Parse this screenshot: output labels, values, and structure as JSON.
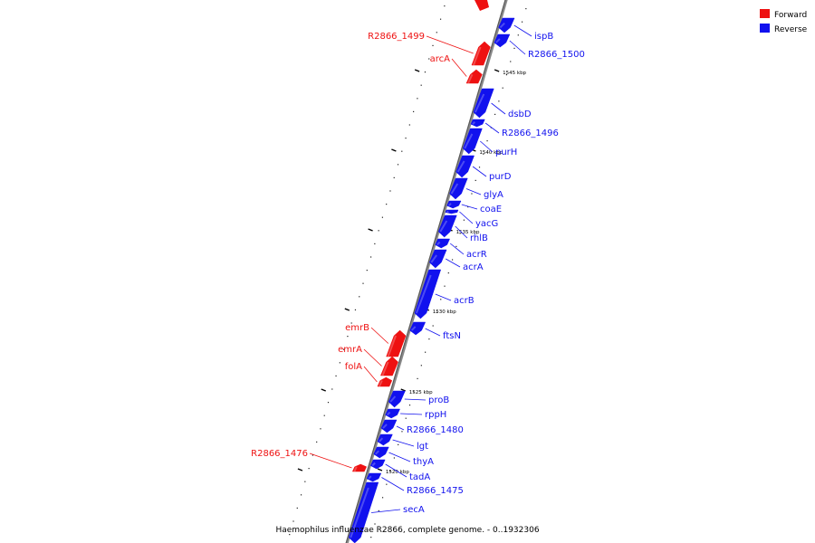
{
  "colors": {
    "forward": "#ee1111",
    "reverse": "#1111ee",
    "backbone": "#888888"
  },
  "legend": {
    "forward_label": "Forward",
    "reverse_label": "Reverse"
  },
  "caption": "Haemophilus influenzae R2866, complete genome. - 0..1932306",
  "ticks": [
    "1545 kbp",
    "1540 kbp",
    "1535 kbp",
    "1530 kbp",
    "1525 kbp",
    "1520 kbp"
  ],
  "genes": [
    {
      "name": "ispB",
      "strand": "reverse"
    },
    {
      "name": "R2866_1500",
      "strand": "reverse"
    },
    {
      "name": "R2866_1499",
      "strand": "forward"
    },
    {
      "name": "arcA",
      "strand": "forward"
    },
    {
      "name": "dsbD",
      "strand": "reverse"
    },
    {
      "name": "R2866_1496",
      "strand": "reverse"
    },
    {
      "name": "purH",
      "strand": "reverse"
    },
    {
      "name": "purD",
      "strand": "reverse"
    },
    {
      "name": "glyA",
      "strand": "reverse"
    },
    {
      "name": "coaE",
      "strand": "reverse"
    },
    {
      "name": "yacG",
      "strand": "reverse"
    },
    {
      "name": "rhlB",
      "strand": "reverse"
    },
    {
      "name": "acrR",
      "strand": "reverse"
    },
    {
      "name": "acrA",
      "strand": "reverse"
    },
    {
      "name": "acrB",
      "strand": "reverse"
    },
    {
      "name": "ftsN",
      "strand": "reverse"
    },
    {
      "name": "emrB",
      "strand": "forward"
    },
    {
      "name": "emrA",
      "strand": "forward"
    },
    {
      "name": "folA",
      "strand": "forward"
    },
    {
      "name": "proB",
      "strand": "reverse"
    },
    {
      "name": "rppH",
      "strand": "reverse"
    },
    {
      "name": "R2866_1480",
      "strand": "reverse"
    },
    {
      "name": "lgt",
      "strand": "reverse"
    },
    {
      "name": "thyA",
      "strand": "reverse"
    },
    {
      "name": "tadA",
      "strand": "reverse"
    },
    {
      "name": "R2866_1476",
      "strand": "forward"
    },
    {
      "name": "R2866_1475",
      "strand": "reverse"
    },
    {
      "name": "secA",
      "strand": "reverse"
    }
  ]
}
